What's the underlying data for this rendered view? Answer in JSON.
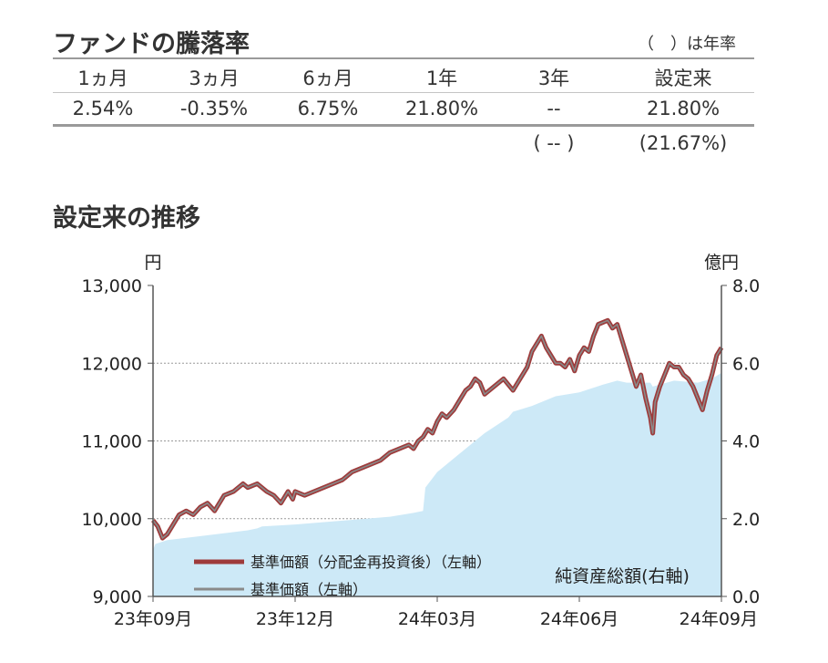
{
  "performance": {
    "title": "ファンドの騰落率",
    "annual_note": "（　）は年率",
    "columns": [
      {
        "label": "1ヵ月",
        "value": "2.54%",
        "annual": ""
      },
      {
        "label": "3ヵ月",
        "value": "-0.35%",
        "annual": ""
      },
      {
        "label": "6ヵ月",
        "value": "6.75%",
        "annual": ""
      },
      {
        "label": "1年",
        "value": "21.80%",
        "annual": ""
      },
      {
        "label": "3年",
        "value": "--",
        "annual": "(  --  )"
      },
      {
        "label": "設定来",
        "value": "21.80%",
        "annual": "(21.67%)"
      }
    ]
  },
  "trend_title": "設定来の推移",
  "chart_data": {
    "type": "line",
    "left_axis_unit": "円",
    "right_axis_unit": "億円",
    "x_ticks": [
      "23年09月",
      "23年12月",
      "24年03月",
      "24年06月",
      "24年09月"
    ],
    "x_range": [
      0,
      12
    ],
    "y_left_ticks": [
      "13,000",
      "12,000",
      "11,000",
      "10,000",
      "9,000"
    ],
    "y_left_range": [
      9000,
      13000
    ],
    "y_right_ticks": [
      "8.0",
      "6.0",
      "4.0",
      "2.0",
      "0.0"
    ],
    "y_right_range": [
      0,
      8
    ],
    "grid": true,
    "legend": [
      {
        "name": "基準価額（分配金再投資後）（左軸）",
        "color": "#9e3b3b"
      },
      {
        "name": "基準価額（左軸）",
        "color": "#8a8a8a"
      }
    ],
    "area_label": "純資産総額(右軸)",
    "series": [
      {
        "name": "基準価額（分配金再投資後）（左軸）",
        "axis": "left",
        "color": "#9e3b3b",
        "x": [
          0,
          0.1,
          0.2,
          0.3,
          0.4,
          0.55,
          0.7,
          0.85,
          1.0,
          1.15,
          1.3,
          1.5,
          1.7,
          1.9,
          2.0,
          2.2,
          2.4,
          2.55,
          2.7,
          2.85,
          2.95,
          3.0,
          3.2,
          3.4,
          3.6,
          3.8,
          4.0,
          4.2,
          4.4,
          4.6,
          4.8,
          5.0,
          5.2,
          5.4,
          5.5,
          5.6,
          5.7,
          5.8,
          5.9,
          6.0,
          6.1,
          6.2,
          6.35,
          6.5,
          6.6,
          6.7,
          6.8,
          6.9,
          7.0,
          7.2,
          7.4,
          7.6,
          7.8,
          7.9,
          8.0,
          8.1,
          8.2,
          8.3,
          8.4,
          8.5,
          8.6,
          8.7,
          8.8,
          8.9,
          9.0,
          9.1,
          9.2,
          9.3,
          9.4,
          9.6,
          9.7,
          9.8,
          9.9,
          10.0,
          10.1,
          10.2,
          10.3,
          10.4,
          10.5,
          10.55,
          10.6,
          10.7,
          10.8,
          10.9,
          11.0,
          11.1,
          11.2,
          11.3,
          11.4,
          11.5,
          11.6,
          11.7,
          11.8,
          11.9,
          12.0
        ],
        "values": [
          9980,
          9900,
          9750,
          9800,
          9900,
          10050,
          10100,
          10050,
          10150,
          10200,
          10100,
          10300,
          10350,
          10450,
          10400,
          10450,
          10350,
          10300,
          10200,
          10350,
          10250,
          10350,
          10300,
          10350,
          10400,
          10450,
          10500,
          10600,
          10650,
          10700,
          10750,
          10850,
          10900,
          10950,
          10900,
          11000,
          11050,
          11150,
          11100,
          11250,
          11350,
          11300,
          11400,
          11550,
          11650,
          11700,
          11800,
          11750,
          11600,
          11700,
          11800,
          11650,
          11850,
          11950,
          12150,
          12250,
          12350,
          12200,
          12100,
          12000,
          12000,
          11950,
          12050,
          11900,
          12100,
          12200,
          12150,
          12350,
          12500,
          12550,
          12450,
          12500,
          12300,
          12100,
          11900,
          11700,
          11850,
          11550,
          11300,
          11100,
          11500,
          11700,
          11850,
          12000,
          11950,
          11950,
          11850,
          11800,
          11700,
          11550,
          11400,
          11650,
          11850,
          12100,
          12200
        ]
      },
      {
        "name": "基準価額（左軸）",
        "axis": "left",
        "color": "#8a8a8a",
        "x": [
          0,
          0.1,
          0.2,
          0.3,
          0.4,
          0.55,
          0.7,
          0.85,
          1.0,
          1.15,
          1.3,
          1.5,
          1.7,
          1.9,
          2.0,
          2.2,
          2.4,
          2.55,
          2.7,
          2.85,
          2.95,
          3.0,
          3.2,
          3.4,
          3.6,
          3.8,
          4.0,
          4.2,
          4.4,
          4.6,
          4.8,
          5.0,
          5.2,
          5.4,
          5.5,
          5.6,
          5.7,
          5.8,
          5.9,
          6.0,
          6.1,
          6.2,
          6.35,
          6.5,
          6.6,
          6.7,
          6.8,
          6.9,
          7.0,
          7.2,
          7.4,
          7.6,
          7.8,
          7.9,
          8.0,
          8.1,
          8.2,
          8.3,
          8.4,
          8.5,
          8.6,
          8.7,
          8.8,
          8.9,
          9.0,
          9.1,
          9.2,
          9.3,
          9.4,
          9.6,
          9.7,
          9.8,
          9.9,
          10.0,
          10.1,
          10.2,
          10.3,
          10.4,
          10.5,
          10.55,
          10.6,
          10.7,
          10.8,
          10.9,
          11.0,
          11.1,
          11.2,
          11.3,
          11.4,
          11.5,
          11.6,
          11.7,
          11.8,
          11.9,
          12.0
        ],
        "values": [
          9980,
          9900,
          9750,
          9800,
          9900,
          10050,
          10100,
          10050,
          10150,
          10200,
          10100,
          10300,
          10350,
          10450,
          10400,
          10450,
          10350,
          10300,
          10200,
          10350,
          10250,
          10350,
          10300,
          10350,
          10400,
          10450,
          10500,
          10600,
          10650,
          10700,
          10750,
          10850,
          10900,
          10950,
          10900,
          11000,
          11050,
          11150,
          11100,
          11250,
          11350,
          11300,
          11400,
          11550,
          11650,
          11700,
          11800,
          11750,
          11600,
          11700,
          11800,
          11650,
          11850,
          11950,
          12150,
          12250,
          12350,
          12200,
          12100,
          12000,
          12000,
          11950,
          12050,
          11900,
          12100,
          12200,
          12150,
          12350,
          12500,
          12550,
          12450,
          12500,
          12300,
          12100,
          11900,
          11700,
          11850,
          11550,
          11300,
          11100,
          11500,
          11700,
          11850,
          12000,
          11950,
          11950,
          11850,
          11800,
          11700,
          11550,
          11400,
          11650,
          11850,
          12100,
          12200
        ]
      },
      {
        "name": "純資産総額(右軸)",
        "axis": "right",
        "type": "area",
        "color": "#cde9f7",
        "x": [
          0,
          0.05,
          0.3,
          1.0,
          2.0,
          2.2,
          2.3,
          3.0,
          4.0,
          5.0,
          5.5,
          5.7,
          5.75,
          6.0,
          6.5,
          7.0,
          7.5,
          7.6,
          8.0,
          8.5,
          9.0,
          9.5,
          9.8,
          10.0,
          10.5,
          10.55,
          11.0,
          11.5,
          11.8,
          12.0
        ],
        "values": [
          1.2,
          1.35,
          1.45,
          1.55,
          1.7,
          1.75,
          1.8,
          1.85,
          1.95,
          2.05,
          2.15,
          2.2,
          2.8,
          3.2,
          3.7,
          4.2,
          4.6,
          4.75,
          4.9,
          5.15,
          5.25,
          5.45,
          5.55,
          5.5,
          5.5,
          5.4,
          5.55,
          5.5,
          5.6,
          5.75
        ]
      }
    ]
  }
}
